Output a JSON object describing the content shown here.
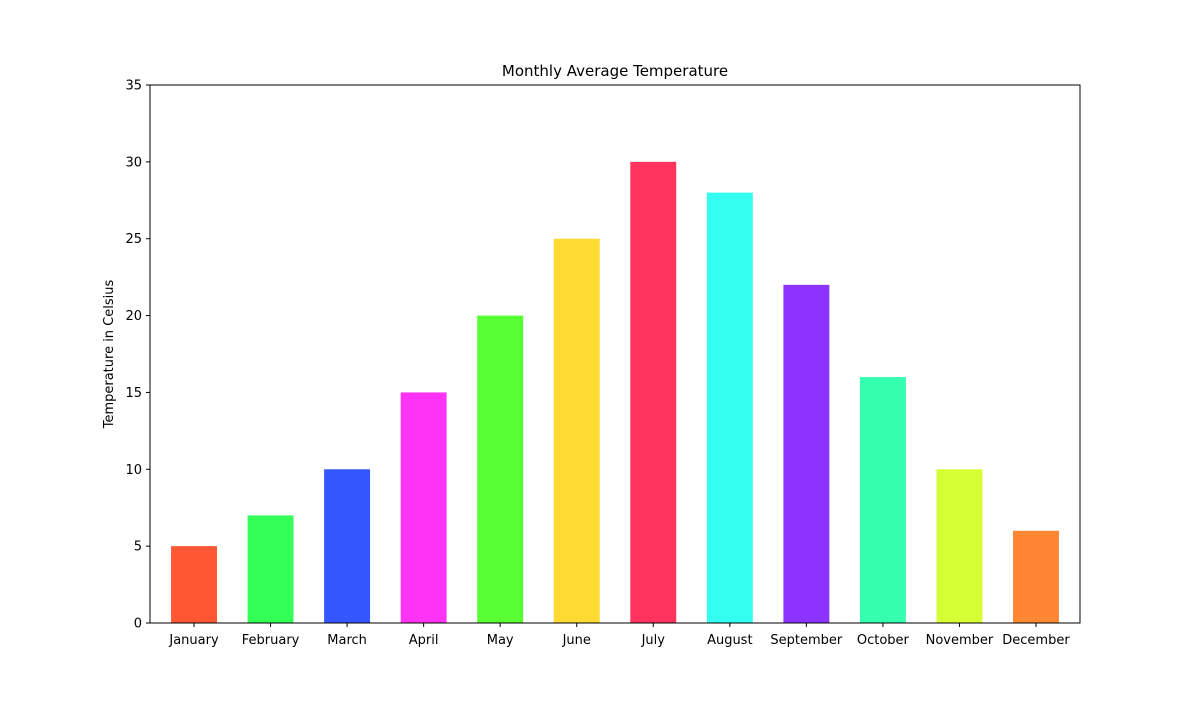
{
  "chart_data": {
    "type": "bar",
    "title": "Monthly Average Temperature",
    "xlabel": "",
    "ylabel": "Temperature in Celsius",
    "categories": [
      "January",
      "February",
      "March",
      "April",
      "May",
      "June",
      "July",
      "August",
      "September",
      "October",
      "November",
      "December"
    ],
    "values": [
      5,
      7,
      10,
      15,
      20,
      25,
      30,
      28,
      22,
      16,
      10,
      6
    ],
    "colors": [
      "#ff5733",
      "#33ff57",
      "#3357ff",
      "#ff33f6",
      "#57ff33",
      "#ffda33",
      "#ff335e",
      "#33fff0",
      "#8c33ff",
      "#33ffaf",
      "#d6ff33",
      "#ff8633"
    ],
    "ylim": [
      0,
      35
    ],
    "yticks": [
      0,
      5,
      10,
      15,
      20,
      25,
      30,
      35
    ],
    "grid": false,
    "legend": "none"
  }
}
